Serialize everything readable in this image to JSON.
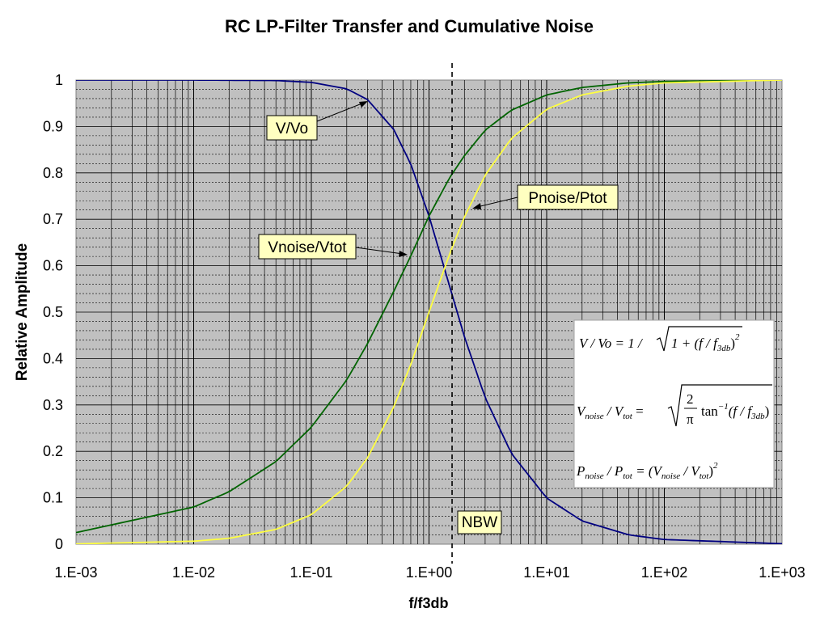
{
  "chart_data": {
    "type": "line",
    "title": "RC LP-Filter Transfer and Cumulative Noise",
    "xlabel": "f/f3db",
    "ylabel": "Relative Amplitude",
    "x_scale": "log",
    "xlim": [
      0.001,
      1000
    ],
    "ylim": [
      0,
      1
    ],
    "x_tick_labels": [
      "1.E-03",
      "1.E-02",
      "1.E-01",
      "1.E+00",
      "1.E+01",
      "1.E+02",
      "1.E+03"
    ],
    "y_tick_labels": [
      "0",
      "0.1",
      "0.2",
      "0.3",
      "0.4",
      "0.5",
      "0.6",
      "0.7",
      "0.8",
      "0.9",
      "1"
    ],
    "grid": true,
    "legend": "none",
    "series": [
      {
        "name": "V/Vo",
        "color": "#000080",
        "x": [
          0.001,
          0.01,
          0.05,
          0.1,
          0.2,
          0.3,
          0.5,
          0.7,
          1,
          1.5,
          2,
          3,
          5,
          10,
          20,
          50,
          100,
          1000
        ],
        "y": [
          1.0,
          1.0,
          0.999,
          0.995,
          0.981,
          0.958,
          0.894,
          0.819,
          0.707,
          0.555,
          0.447,
          0.316,
          0.196,
          0.0995,
          0.05,
          0.02,
          0.01,
          0.001
        ]
      },
      {
        "name": "Vnoise/Vtot",
        "color": "#006400",
        "x": [
          0.001,
          0.01,
          0.02,
          0.05,
          0.1,
          0.2,
          0.3,
          0.5,
          0.7,
          1,
          1.5,
          2,
          3,
          5,
          10,
          20,
          50,
          100,
          1000
        ],
        "y": [
          0.025,
          0.08,
          0.113,
          0.178,
          0.252,
          0.354,
          0.432,
          0.544,
          0.621,
          0.707,
          0.79,
          0.837,
          0.892,
          0.935,
          0.968,
          0.984,
          0.994,
          0.997,
          1.0
        ]
      },
      {
        "name": "Pnoise/Ptot",
        "color": "#ffff40",
        "x": [
          0.001,
          0.01,
          0.02,
          0.05,
          0.1,
          0.2,
          0.3,
          0.5,
          0.7,
          1,
          1.5,
          2,
          3,
          5,
          10,
          20,
          50,
          100,
          1000
        ],
        "y": [
          0.0006,
          0.0064,
          0.0127,
          0.0318,
          0.0635,
          0.125,
          0.186,
          0.295,
          0.387,
          0.5,
          0.626,
          0.705,
          0.795,
          0.874,
          0.937,
          0.968,
          0.987,
          0.994,
          1.0
        ]
      }
    ],
    "annotations": [
      {
        "label": "V/Vo"
      },
      {
        "label": "Vnoise/Vtot"
      },
      {
        "label": "Pnoise/Ptot"
      },
      {
        "label": "NBW",
        "x": 1.5708
      }
    ],
    "equations": {
      "eq1": {
        "lhs": "V / Vo = 1 / ",
        "radicand": "1 + (f / f",
        "sub": "3db",
        "close": ")",
        "exp": "2"
      },
      "eq2": {
        "lhs_main": "V",
        "lhs_sub1": "noise",
        "mid": " / V",
        "lhs_sub2": "tot",
        "eq": " = ",
        "num": "2",
        "den": "π",
        "fn": "tan",
        "fn_exp": "−1",
        "arg": "(f / f",
        "arg_sub": "3db",
        "arg_close": ")"
      },
      "eq3": {
        "lhs_main": "P",
        "lhs_sub1": "noise",
        "mid": " / P",
        "lhs_sub2": "tot",
        "eq": " = (V",
        "rhs_sub1": "noise",
        "rhs_mid": " / V",
        "rhs_sub2": "tot",
        "close": ")",
        "exp": "2"
      }
    }
  }
}
